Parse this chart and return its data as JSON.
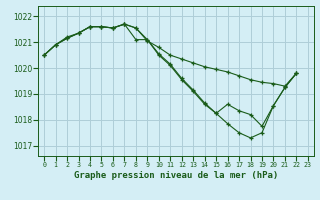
{
  "title": "Graphe pression niveau de la mer (hPa)",
  "bg_color": "#d4eef5",
  "grid_color": "#aecdd8",
  "line_color": "#1a5c1a",
  "xlim": [
    -0.5,
    23.5
  ],
  "ylim": [
    1016.6,
    1022.4
  ],
  "yticks": [
    1017,
    1018,
    1019,
    1020,
    1021,
    1022
  ],
  "xticks": [
    0,
    1,
    2,
    3,
    4,
    5,
    6,
    7,
    8,
    9,
    10,
    11,
    12,
    13,
    14,
    15,
    16,
    17,
    18,
    19,
    20,
    21,
    22,
    23
  ],
  "series": [
    [
      1020.5,
      1020.9,
      1021.15,
      1021.35,
      1021.6,
      1021.6,
      1021.55,
      1021.7,
      1021.55,
      1021.05,
      1020.8,
      1020.5,
      1020.35,
      1020.2,
      1020.05,
      1019.95,
      1019.85,
      1019.7,
      1019.55,
      1019.45,
      1019.4,
      1019.3,
      1019.8,
      null
    ],
    [
      1020.5,
      1020.9,
      1021.2,
      1021.35,
      1021.6,
      1021.6,
      1021.55,
      1021.7,
      1021.1,
      1021.1,
      1020.55,
      1020.15,
      1019.6,
      1019.15,
      1018.65,
      1018.25,
      1018.6,
      1018.35,
      1018.2,
      1017.75,
      1018.55,
      1019.25,
      1019.8,
      null
    ],
    [
      1020.5,
      1020.9,
      1021.15,
      1021.35,
      1021.6,
      1021.6,
      1021.55,
      1021.7,
      1021.55,
      1021.1,
      1020.5,
      1020.1,
      1019.55,
      1019.1,
      1018.6,
      1018.25,
      1017.85,
      1017.5,
      1017.3,
      1017.5,
      1018.55,
      1019.25,
      1019.8,
      null
    ]
  ]
}
